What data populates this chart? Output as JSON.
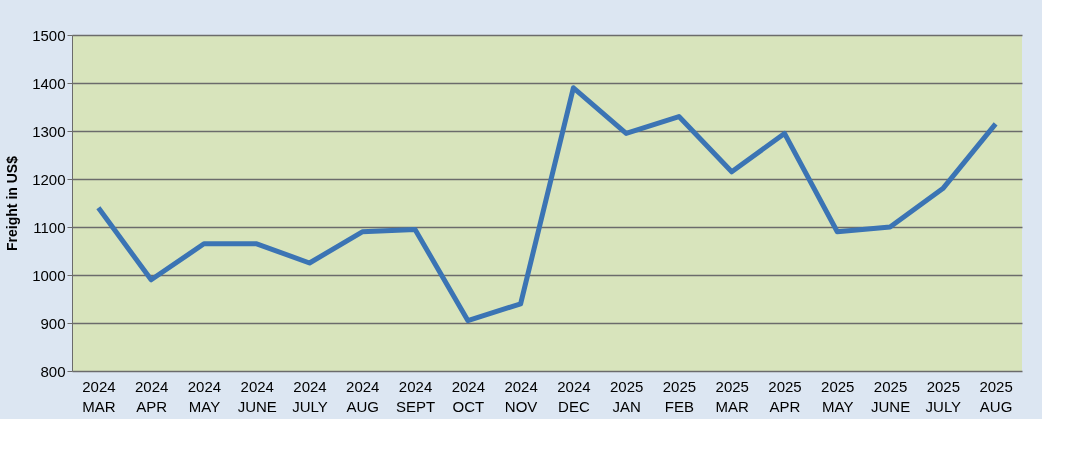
{
  "chart_data": {
    "type": "line",
    "ylabel": "Freight in US$",
    "categories": [
      "2024 MAR",
      "2024 APR",
      "2024 MAY",
      "2024 JUNE",
      "2024 JULY",
      "2024 AUG",
      "2024 SEPT",
      "2024 OCT",
      "2024 NOV",
      "2024 DEC",
      "2025 JAN",
      "2025 FEB",
      "2025 MAR",
      "2025 APR",
      "2025 MAY",
      "2025 JUNE",
      "2025 JULY",
      "2025 AUG"
    ],
    "series": [
      {
        "color": "#3b74b4",
        "values": [
          1140,
          990,
          1065,
          1065,
          1025,
          1090,
          1095,
          905,
          940,
          1390,
          1295,
          1330,
          1215,
          1295,
          1090,
          1100,
          1180,
          1315
        ]
      }
    ],
    "ylim": [
      800,
      1500
    ],
    "yticks": [
      800,
      900,
      1000,
      1100,
      1200,
      1300,
      1400,
      1500
    ],
    "grid": "y",
    "marker": "none",
    "line_style": "solid"
  }
}
